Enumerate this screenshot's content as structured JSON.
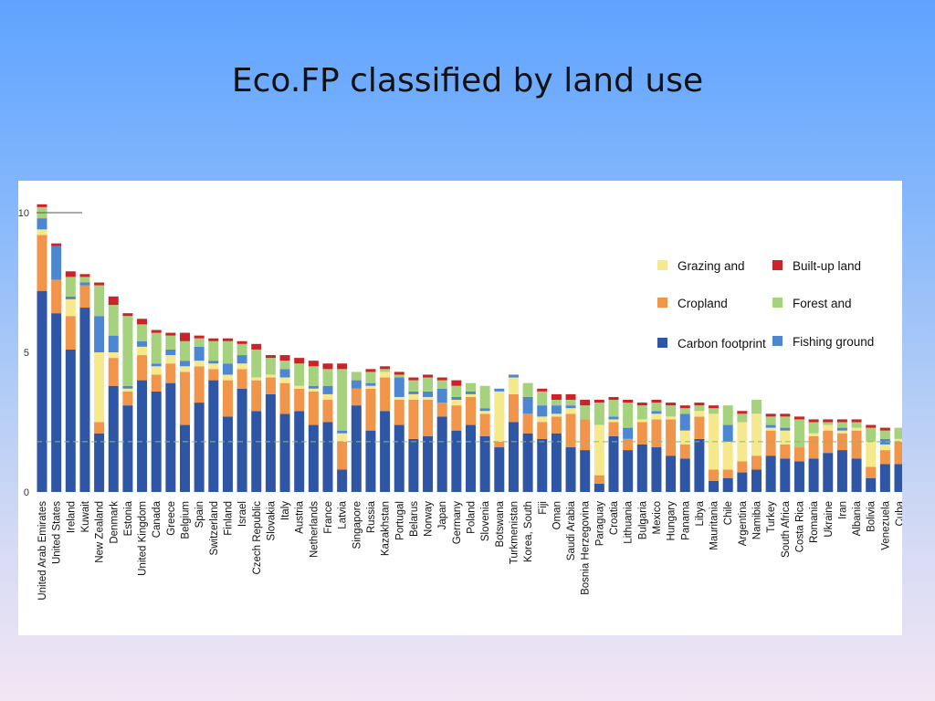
{
  "slide": {
    "title": "Eco.FP classified by land use"
  },
  "colors": {
    "carbon": "#2f56a4",
    "cropland": "#f0954a",
    "grazing": "#f6e98d",
    "forest": "#a7d27d",
    "fishing": "#4d87d1",
    "builtup": "#cc2229"
  },
  "chart_data": {
    "type": "bar",
    "stacked": true,
    "title": "",
    "xlabel": "",
    "ylabel": "",
    "ylim": [
      0,
      10
    ],
    "yticks": [
      0,
      5,
      10
    ],
    "reference_lines": [
      {
        "y": 1.8,
        "style": "dashed",
        "color": "#7fbf6f"
      },
      {
        "y": 10,
        "style": "solid",
        "color": "#555555"
      }
    ],
    "legend": {
      "placement": "top-right",
      "entries": [
        {
          "label": "Grazing  and",
          "key": "grazing"
        },
        {
          "label": "Built-up land",
          "key": "builtup"
        },
        {
          "label": "Cropland",
          "key": "cropland"
        },
        {
          "label": "Forest  and",
          "key": "forest"
        },
        {
          "label": "Carbon footprint",
          "key": "carbon"
        },
        {
          "label": "Fishing ground",
          "key": "fishing"
        }
      ]
    },
    "categories": [
      "United Arab Emirates",
      "United States",
      "Ireland",
      "Kuwait",
      "New Zealand",
      "Denmark",
      "Estonia",
      "United Kingdom",
      "Canada",
      "Greece",
      "Belgium",
      "Spain",
      "Switzerland",
      "Finland",
      "Israel",
      "Czech Republic",
      "Slovakia",
      "Italy",
      "Austria",
      "Netherlands",
      "France",
      "Latvia",
      "Singapore",
      "Russia",
      "Kazakhstan",
      "Portugal",
      "Belarus",
      "Norway",
      "Japan",
      "Germany",
      "Poland",
      "Slovenia",
      "Botswana",
      "Turkmenistan",
      "Korea, South",
      "Fiji",
      "Oman",
      "Saudi Arabia",
      "Bosnia Herzegovina",
      "Paraguay",
      "Croatia",
      "Lithuania",
      "Bulgaria",
      "Mexico",
      "Hungary",
      "Panama",
      "Libya",
      "Mauritania",
      "Chile",
      "Argentina",
      "Namibia",
      "Turkey",
      "South Africa",
      "Costa Rica",
      "Romania",
      "Ukraine",
      "Iran",
      "Albania",
      "Bolivia",
      "Venezuela",
      "Cuba"
    ],
    "series": [
      {
        "key": "carbon",
        "values": [
          7.2,
          6.4,
          5.1,
          6.6,
          2.1,
          3.8,
          3.1,
          4.0,
          3.6,
          3.9,
          2.4,
          3.2,
          4.0,
          2.7,
          3.7,
          2.9,
          3.5,
          2.8,
          2.9,
          2.4,
          2.5,
          0.8,
          3.1,
          2.2,
          2.9,
          2.4,
          1.9,
          2.0,
          2.7,
          2.2,
          2.4,
          2.0,
          1.6,
          2.5,
          2.1,
          1.9,
          2.1,
          1.6,
          1.5,
          0.3,
          2.0,
          1.5,
          1.7,
          1.6,
          1.3,
          1.2,
          1.9,
          0.4,
          0.5,
          0.7,
          0.8,
          1.3,
          1.2,
          1.1,
          1.2,
          1.4,
          1.5,
          1.2,
          0.5,
          1.0,
          1.0
        ]
      },
      {
        "key": "cropland",
        "values": [
          2.0,
          1.2,
          1.2,
          0.8,
          0.4,
          1.0,
          0.5,
          0.9,
          0.6,
          0.7,
          1.9,
          1.3,
          0.4,
          1.3,
          0.7,
          1.1,
          0.6,
          1.1,
          0.8,
          1.2,
          0.8,
          1.0,
          0.6,
          1.5,
          1.2,
          0.9,
          1.4,
          1.3,
          0.5,
          0.9,
          1.0,
          0.8,
          0.2,
          1.0,
          0.7,
          0.6,
          0.6,
          1.2,
          1.1,
          0.3,
          0.5,
          0.4,
          0.8,
          1.0,
          1.3,
          0.5,
          0.8,
          0.4,
          0.3,
          0.4,
          0.5,
          0.9,
          0.5,
          0.5,
          0.8,
          0.8,
          0.6,
          1.0,
          0.4,
          0.5,
          0.8
        ]
      },
      {
        "key": "grazing",
        "values": [
          0.2,
          0.0,
          0.6,
          0.0,
          2.5,
          0.2,
          0.1,
          0.3,
          0.3,
          0.3,
          0.2,
          0.2,
          0.2,
          0.2,
          0.2,
          0.1,
          0.1,
          0.2,
          0.1,
          0.1,
          0.2,
          0.3,
          0.0,
          0.1,
          0.2,
          0.1,
          0.2,
          0.1,
          0.0,
          0.2,
          0.1,
          0.1,
          1.8,
          0.6,
          0.0,
          0.2,
          0.1,
          0.2,
          0.0,
          1.8,
          0.1,
          0.0,
          0.1,
          0.2,
          0.1,
          0.5,
          0.2,
          2.0,
          1.0,
          1.4,
          1.5,
          0.1,
          0.5,
          0.0,
          0.1,
          0.2,
          0.1,
          0.1,
          0.9,
          0.2,
          0.1
        ]
      },
      {
        "key": "fishing",
        "values": [
          0.4,
          1.2,
          0.1,
          0.1,
          1.3,
          0.6,
          0.1,
          0.2,
          0.1,
          0.2,
          0.2,
          0.5,
          0.1,
          0.4,
          0.3,
          0.0,
          0.0,
          0.3,
          0.0,
          0.1,
          0.3,
          0.1,
          0.3,
          0.1,
          0.0,
          0.7,
          0.1,
          0.2,
          0.5,
          0.1,
          0.1,
          0.1,
          0.1,
          0.1,
          0.6,
          0.4,
          0.3,
          0.1,
          0.0,
          0.0,
          0.1,
          0.4,
          0.0,
          0.1,
          0.0,
          0.6,
          0.0,
          0.0,
          0.6,
          0.0,
          0.0,
          0.1,
          0.1,
          0.0,
          0.0,
          0.0,
          0.1,
          0.0,
          0.0,
          0.2,
          0.0
        ]
      },
      {
        "key": "forest",
        "values": [
          0.4,
          0.0,
          0.7,
          0.2,
          1.1,
          1.1,
          2.5,
          0.6,
          1.1,
          0.5,
          0.7,
          0.3,
          0.7,
          0.8,
          0.4,
          1.0,
          0.6,
          0.3,
          0.8,
          0.7,
          0.6,
          2.2,
          0.3,
          0.4,
          0.1,
          0.1,
          0.4,
          0.5,
          0.3,
          0.4,
          0.3,
          0.8,
          0.0,
          0.0,
          0.5,
          0.5,
          0.2,
          0.2,
          0.5,
          0.8,
          0.6,
          0.9,
          0.5,
          0.3,
          0.4,
          0.2,
          0.2,
          0.2,
          0.7,
          0.3,
          0.5,
          0.3,
          0.4,
          1.0,
          0.4,
          0.1,
          0.2,
          0.2,
          0.5,
          0.3,
          0.4
        ]
      },
      {
        "key": "builtup",
        "values": [
          0.1,
          0.1,
          0.2,
          0.1,
          0.1,
          0.3,
          0.1,
          0.2,
          0.1,
          0.1,
          0.3,
          0.1,
          0.1,
          0.1,
          0.1,
          0.2,
          0.1,
          0.2,
          0.2,
          0.2,
          0.2,
          0.2,
          0.0,
          0.1,
          0.1,
          0.1,
          0.1,
          0.1,
          0.1,
          0.2,
          0.0,
          0.0,
          0.0,
          0.0,
          0.0,
          0.1,
          0.2,
          0.2,
          0.2,
          0.1,
          0.1,
          0.1,
          0.1,
          0.1,
          0.1,
          0.1,
          0.1,
          0.1,
          0.0,
          0.1,
          0.0,
          0.1,
          0.1,
          0.1,
          0.1,
          0.1,
          0.1,
          0.1,
          0.1,
          0.1,
          0.0
        ]
      }
    ]
  }
}
